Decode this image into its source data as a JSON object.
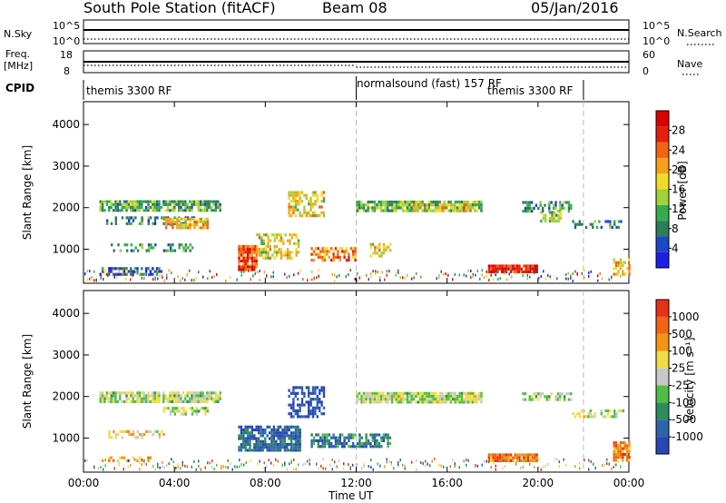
{
  "header": {
    "station_title": "South Pole Station (fitACF)",
    "beam": "Beam 08",
    "date": "05/Jan/2016"
  },
  "summary_panels": {
    "nsky": {
      "label": "N.Sky",
      "right_label": "N.Search",
      "left_ticks": [
        "10^5",
        "10^0"
      ],
      "right_ticks": [
        "10^5",
        "10^0"
      ]
    },
    "freq": {
      "label_line1": "Freq.",
      "label_line2": "[MHz]",
      "right_label": "Nave",
      "left_ticks": [
        "18",
        "8"
      ],
      "right_ticks": [
        "60",
        "0"
      ]
    },
    "cpid": {
      "label": "CPID",
      "segments": [
        {
          "text": "themis 3300 RF",
          "start_hour": 0
        },
        {
          "text": "normalsound (fast) 157 RF",
          "start_hour": 12
        },
        {
          "text": "themis 3300 RF",
          "start_hour": 22
        }
      ]
    }
  },
  "chart_data": [
    {
      "type": "heatmap",
      "name": "power",
      "ylabel": "Slant Range [km]",
      "xlabel": "",
      "x_range_hours": [
        0,
        24
      ],
      "ylim": [
        180,
        4550
      ],
      "y_ticks": [
        1000,
        2000,
        3000,
        4000
      ],
      "colorbar": {
        "label": "Power [dB]",
        "ticks": [
          "28",
          "24",
          "20",
          "16",
          "12",
          "8",
          "4"
        ],
        "range": [
          0,
          30
        ],
        "colors": [
          "#1e1ee6",
          "#1e46c8",
          "#2d7d5a",
          "#37aa50",
          "#a0d23c",
          "#f0dc28",
          "#f5a01e",
          "#f06414",
          "#e61e0a",
          "#dc0000"
        ]
      },
      "bands": [
        {
          "t0": 0.7,
          "t1": 6.0,
          "r": 2050,
          "dr": 130,
          "level": 0.35,
          "dens": 0.8
        },
        {
          "t0": 1.0,
          "t1": 5.5,
          "r": 1700,
          "dr": 90,
          "level": 0.25,
          "dens": 0.4
        },
        {
          "t0": 1.2,
          "t1": 4.8,
          "r": 1050,
          "dr": 90,
          "level": 0.3,
          "dens": 0.4
        },
        {
          "t0": 0.7,
          "t1": 3.5,
          "r": 500,
          "dr": 70,
          "level": 0.2,
          "dens": 0.5
        },
        {
          "t0": 3.5,
          "t1": 5.5,
          "r": 1650,
          "dr": 110,
          "level": 0.62,
          "dens": 0.7
        },
        {
          "t0": 6.8,
          "t1": 7.6,
          "r": 800,
          "dr": 300,
          "level": 0.82,
          "dens": 0.9
        },
        {
          "t0": 7.6,
          "t1": 9.5,
          "r": 1100,
          "dr": 280,
          "level": 0.55,
          "dens": 0.6
        },
        {
          "t0": 9.0,
          "t1": 10.6,
          "r": 2100,
          "dr": 300,
          "level": 0.55,
          "dens": 0.5
        },
        {
          "t0": 10.0,
          "t1": 12.0,
          "r": 900,
          "dr": 150,
          "level": 0.72,
          "dens": 0.6
        },
        {
          "t0": 12.0,
          "t1": 17.5,
          "r": 2050,
          "dr": 120,
          "level": 0.38,
          "dens": 0.85
        },
        {
          "t0": 14.5,
          "t1": 17.0,
          "r": 2000,
          "dr": 100,
          "level": 0.55,
          "dens": 0.5
        },
        {
          "t0": 12.5,
          "t1": 13.5,
          "r": 1000,
          "dr": 150,
          "level": 0.55,
          "dens": 0.55
        },
        {
          "t0": 17.8,
          "t1": 20.0,
          "r": 530,
          "dr": 100,
          "level": 0.9,
          "dens": 0.95
        },
        {
          "t0": 19.3,
          "t1": 21.5,
          "r": 2050,
          "dr": 110,
          "level": 0.3,
          "dens": 0.6
        },
        {
          "t0": 20.0,
          "t1": 21.0,
          "r": 1800,
          "dr": 120,
          "level": 0.45,
          "dens": 0.5
        },
        {
          "t0": 21.5,
          "t1": 23.8,
          "r": 1600,
          "dr": 100,
          "level": 0.25,
          "dens": 0.4
        },
        {
          "t0": 23.3,
          "t1": 24.0,
          "r": 600,
          "dr": 180,
          "level": 0.6,
          "dens": 0.6
        }
      ]
    },
    {
      "type": "heatmap",
      "name": "velocity",
      "ylabel": "Slant Range [km]",
      "xlabel": "Time UT",
      "x_range_hours": [
        0,
        24
      ],
      "x_ticks": [
        "00:00",
        "04:00",
        "08:00",
        "12:00",
        "16:00",
        "20:00",
        "00:00"
      ],
      "ylim": [
        180,
        4550
      ],
      "y_ticks": [
        1000,
        2000,
        3000,
        4000
      ],
      "colorbar": {
        "label": "Velocity [m s⁻¹]",
        "ticks": [
          "1000",
          "500",
          "100",
          "25",
          "-25",
          "-100",
          "-500",
          "-1000"
        ],
        "colors": [
          "#2846b4",
          "#2d64aa",
          "#2d8c5a",
          "#50be46",
          "#c8c8c8",
          "#f0dc46",
          "#f09614",
          "#f06414",
          "#e63214"
        ]
      },
      "bands": [
        {
          "t0": 0.7,
          "t1": 6.0,
          "r": 2000,
          "dr": 120,
          "level": 0.5,
          "dens": 0.8
        },
        {
          "t0": 1.0,
          "t1": 3.5,
          "r": 1100,
          "dr": 90,
          "level": 0.6,
          "dens": 0.4
        },
        {
          "t0": 0.7,
          "t1": 3.0,
          "r": 500,
          "dr": 60,
          "level": 0.7,
          "dens": 0.5
        },
        {
          "t0": 3.5,
          "t1": 5.5,
          "r": 1650,
          "dr": 100,
          "level": 0.5,
          "dens": 0.6
        },
        {
          "t0": 6.8,
          "t1": 9.5,
          "r": 1000,
          "dr": 300,
          "level": 0.15,
          "dens": 0.85
        },
        {
          "t0": 9.0,
          "t1": 10.6,
          "r": 1900,
          "dr": 350,
          "level": 0.05,
          "dens": 0.6
        },
        {
          "t0": 10.0,
          "t1": 13.5,
          "r": 950,
          "dr": 160,
          "level": 0.22,
          "dens": 0.6
        },
        {
          "t0": 12.0,
          "t1": 17.5,
          "r": 2000,
          "dr": 110,
          "level": 0.5,
          "dens": 0.9
        },
        {
          "t0": 17.8,
          "t1": 20.0,
          "r": 530,
          "dr": 100,
          "level": 0.8,
          "dens": 0.95
        },
        {
          "t0": 19.3,
          "t1": 21.5,
          "r": 2000,
          "dr": 100,
          "level": 0.45,
          "dens": 0.6
        },
        {
          "t0": 21.5,
          "t1": 23.8,
          "r": 1600,
          "dr": 90,
          "level": 0.5,
          "dens": 0.4
        },
        {
          "t0": 23.3,
          "t1": 24.0,
          "r": 700,
          "dr": 220,
          "level": 0.82,
          "dens": 0.7
        }
      ]
    }
  ]
}
